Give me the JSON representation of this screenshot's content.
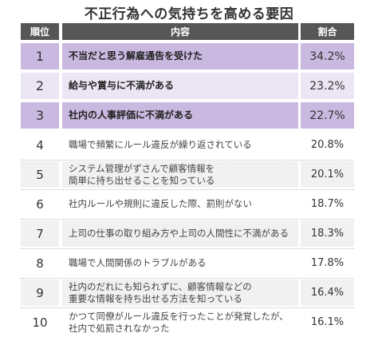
{
  "title": "不正行為への気持ちを高める要因",
  "header": {
    "rank": "順位",
    "content": "内容",
    "ratio": "割合"
  },
  "chart_data": {
    "type": "table",
    "title": "不正行為への気持ちを高める要因",
    "columns": [
      "順位",
      "内容",
      "割合"
    ],
    "rows": [
      {
        "rank": "1",
        "text": [
          "不当だと思う解雇通告を受けた"
        ],
        "pct": "34.2%",
        "value": 34.2
      },
      {
        "rank": "2",
        "text": [
          "給与や賞与に不満がある"
        ],
        "pct": "23.2%",
        "value": 23.2
      },
      {
        "rank": "3",
        "text": [
          "社内の人事評価に不満がある"
        ],
        "pct": "22.7%",
        "value": 22.7
      },
      {
        "rank": "4",
        "text": [
          "職場で頻繁にルール違反が繰り返されている"
        ],
        "pct": "20.8%",
        "value": 20.8
      },
      {
        "rank": "5",
        "text": [
          "システム管理がずさんで顧客情報を",
          "簡単に持ち出せることを知っている"
        ],
        "pct": "20.1%",
        "value": 20.1
      },
      {
        "rank": "6",
        "text": [
          "社内ルールや規則に違反した際、罰則がない"
        ],
        "pct": "18.7%",
        "value": 18.7
      },
      {
        "rank": "7",
        "text": [
          "上司の仕事の取り組み方や上司の人間性に不満がある"
        ],
        "pct": "18.3%",
        "value": 18.3
      },
      {
        "rank": "8",
        "text": [
          "職場で人間関係のトラブルがある"
        ],
        "pct": "17.8%",
        "value": 17.8
      },
      {
        "rank": "9",
        "text": [
          "社内のだれにも知られずに、顧客情報などの",
          "重要な情報を持ち出せる方法を知っている"
        ],
        "pct": "16.4%",
        "value": 16.4
      },
      {
        "rank": "10",
        "text": [
          "かつて同僚がルール違反を行ったことが発覚したが、",
          "社内で処罰されなかった"
        ],
        "pct": "16.1%",
        "value": 16.1
      }
    ],
    "highlight": {
      "strong_rows": [
        1,
        3
      ],
      "light_rows": [
        2
      ],
      "banded_rows": [
        5,
        7,
        9
      ],
      "colors": {
        "header": "#565656",
        "strong": "#c9b8e0",
        "light": "#ece5f4",
        "band": "#f1f1f1"
      }
    }
  }
}
